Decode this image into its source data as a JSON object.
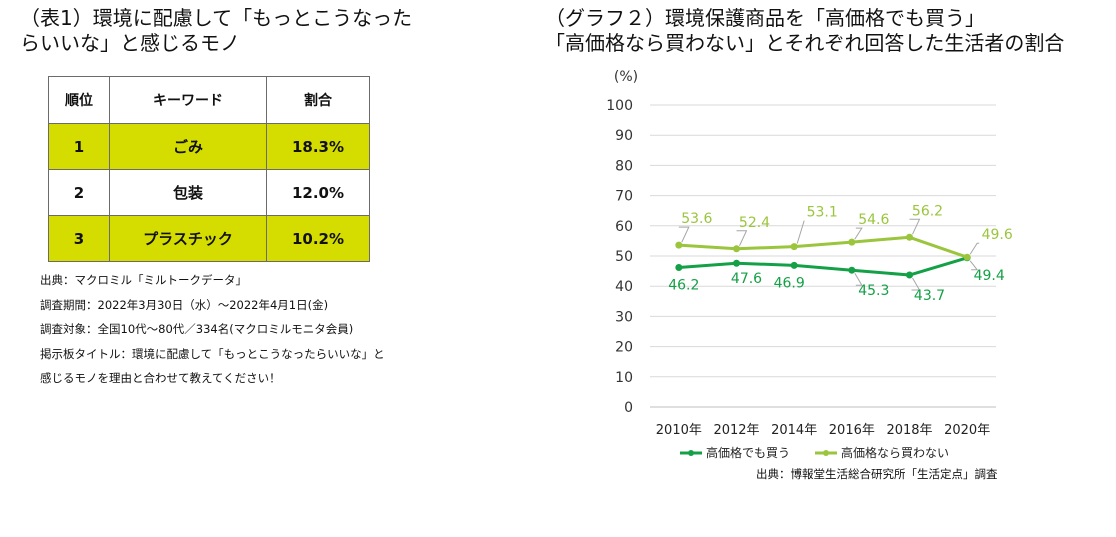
{
  "left": {
    "title_line1": "（表1）環境に配慮して「もっとこうなった",
    "title_line2": "らいいな」と感じるモノ",
    "table": {
      "headers": [
        "順位",
        "キーワード",
        "割合"
      ],
      "rows": [
        {
          "rank": "1",
          "keyword": "ごみ",
          "share": "18.3%"
        },
        {
          "rank": "2",
          "keyword": "包装",
          "share": "12.0%"
        },
        {
          "rank": "3",
          "keyword": "プラスチック",
          "share": "10.2%"
        }
      ],
      "highlight_color": "#d5dc00"
    },
    "notes": [
      "出典：マクロミル「ミルトークデータ」",
      "調査期間：2022年3月30日（水）～2022年4月1日(金)",
      "調査対象：全国10代～80代／334名(マクロミルモニタ会員)",
      "掲示板タイトル：環境に配慮して「もっとこうなったらいいな」と",
      "感じるモノを理由と合わせて教えてください！"
    ]
  },
  "right": {
    "title_line1": "（グラフ２）環境保護商品を「高価格でも買う」",
    "title_line2": "「高価格なら買わない」とそれぞれ回答した生活者の割合",
    "source": "出典：博報堂生活総合研究所「生活定点」調査"
  },
  "chart_data": {
    "type": "line",
    "categories": [
      "2010年",
      "2012年",
      "2014年",
      "2016年",
      "2018年",
      "2020年"
    ],
    "series": [
      {
        "name": "高価格でも買う",
        "values": [
          46.2,
          47.6,
          46.9,
          45.3,
          43.7,
          49.4
        ],
        "labels": [
          "46.2",
          "47.6",
          "46.9",
          "45.3",
          "43.7",
          "49.4"
        ],
        "color": "#14a046"
      },
      {
        "name": "高価格なら買わない",
        "values": [
          53.6,
          52.4,
          53.1,
          54.6,
          56.2,
          49.6
        ],
        "labels": [
          "53.6",
          "52.4",
          "53.1",
          "54.6",
          "56.2",
          "49.6"
        ],
        "color": "#9ac53c"
      }
    ],
    "ylabel": "(%)",
    "ylim": [
      0,
      100
    ],
    "yticks": [
      "0",
      "10",
      "20",
      "30",
      "40",
      "50",
      "60",
      "70",
      "80",
      "90",
      "100"
    ],
    "grid": true,
    "legend": "bottom"
  }
}
